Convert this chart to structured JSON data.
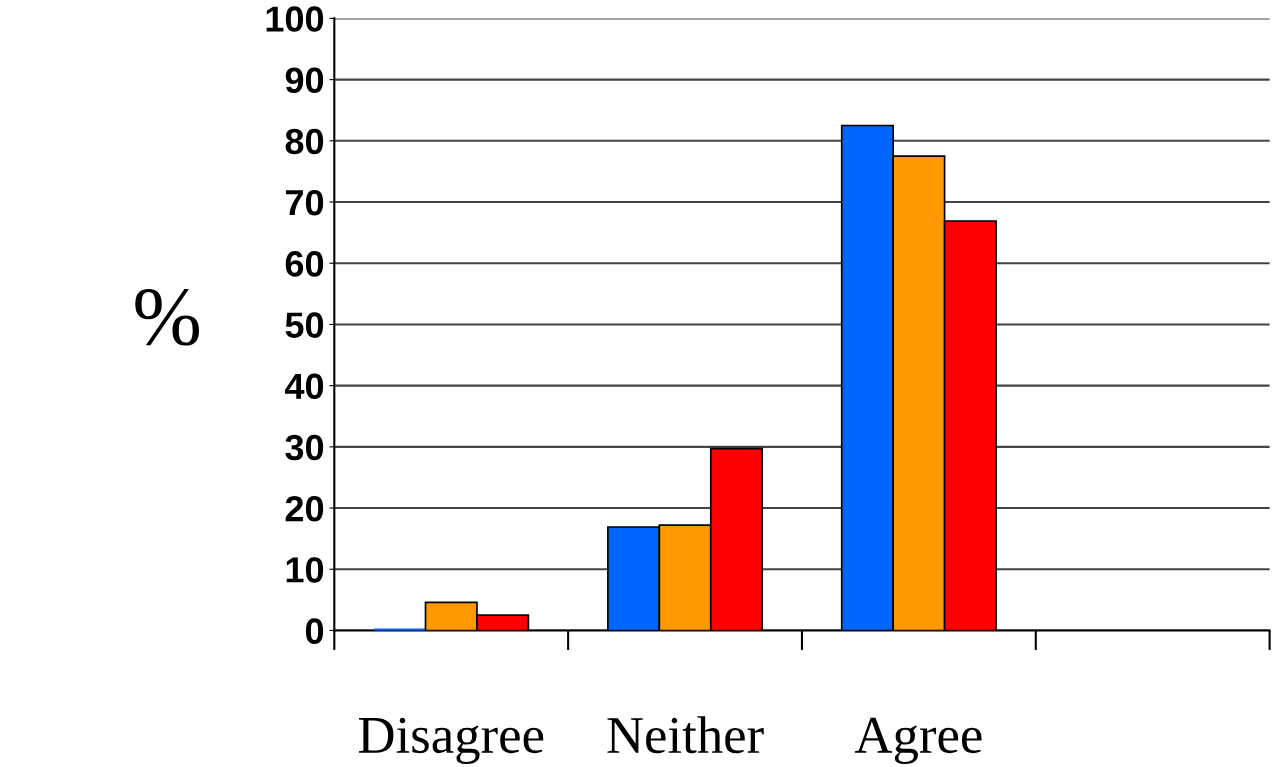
{
  "chart_data": {
    "type": "bar",
    "ylabel": "%",
    "categories": [
      "Disagree",
      "Neither",
      "Agree",
      null
    ],
    "series": [
      {
        "color": "#0066ff",
        "values": [
          0,
          16.9,
          82.5,
          null
        ]
      },
      {
        "color": "#ff9900",
        "values": [
          4.6,
          17.2,
          77.5,
          null
        ]
      },
      {
        "color": "#ff0000",
        "values": [
          2.5,
          29.7,
          66.9,
          null
        ]
      }
    ],
    "ylim": [
      0,
      100
    ],
    "yticks": [
      0,
      10,
      20,
      30,
      40,
      50,
      60,
      70,
      80,
      90,
      100
    ],
    "grid": "y",
    "legend": false
  }
}
